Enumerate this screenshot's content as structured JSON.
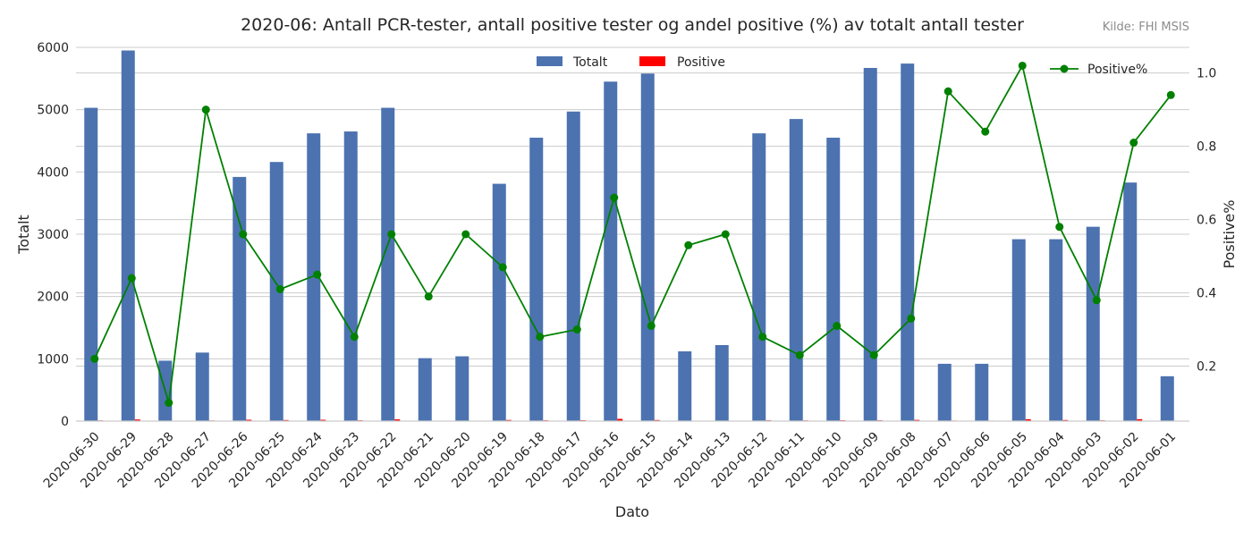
{
  "source_note": "Kilde: FHI MSIS",
  "chart_data": {
    "type": "bar+line",
    "title": "2020-06: Antall PCR-tester, antall positive tester og andel positive (%) av totalt antall tester",
    "xlabel": "Dato",
    "ylabel_left": "Totalt",
    "ylabel_right": "Positive%",
    "ylim_left": [
      0,
      6000
    ],
    "yticks_left": [
      "0",
      "1000",
      "2000",
      "3000",
      "4000",
      "5000",
      "6000"
    ],
    "ylim_right": [
      0.05,
      1.07
    ],
    "yticks_right": [
      "0.2",
      "0.4",
      "0.6",
      "0.8",
      "1.0"
    ],
    "grid": true,
    "legend_bars_placement": "top-center",
    "legend_line_placement": "top-right",
    "categories": [
      "2020-06-30",
      "2020-06-29",
      "2020-06-28",
      "2020-06-27",
      "2020-06-26",
      "2020-06-25",
      "2020-06-24",
      "2020-06-23",
      "2020-06-22",
      "2020-06-21",
      "2020-06-20",
      "2020-06-19",
      "2020-06-18",
      "2020-06-17",
      "2020-06-16",
      "2020-06-15",
      "2020-06-14",
      "2020-06-13",
      "2020-06-12",
      "2020-06-11",
      "2020-06-10",
      "2020-06-09",
      "2020-06-08",
      "2020-06-07",
      "2020-06-06",
      "2020-06-05",
      "2020-06-04",
      "2020-06-03",
      "2020-06-02",
      "2020-06-01"
    ],
    "series": [
      {
        "name": "Totalt",
        "kind": "bar",
        "axis": "left",
        "color": "#4c72b0",
        "values": [
          5030,
          5950,
          970,
          1100,
          3920,
          4160,
          4620,
          4650,
          5030,
          1010,
          1040,
          3810,
          4550,
          4970,
          5450,
          5580,
          1120,
          1220,
          4620,
          4850,
          4550,
          5670,
          5740,
          920,
          920,
          2920,
          2920,
          3120,
          3830,
          720
        ]
      },
      {
        "name": "Positive",
        "kind": "bar",
        "axis": "left",
        "color": "#ff0000",
        "values": [
          11,
          26,
          1,
          10,
          22,
          17,
          21,
          13,
          28,
          4,
          6,
          18,
          13,
          15,
          36,
          17,
          6,
          7,
          13,
          11,
          14,
          13,
          19,
          9,
          8,
          30,
          17,
          12,
          31,
          7
        ]
      },
      {
        "name": "Positive%",
        "kind": "line",
        "axis": "right",
        "color": "#008000",
        "values": [
          0.22,
          0.44,
          0.1,
          0.9,
          0.56,
          0.41,
          0.45,
          0.28,
          0.56,
          0.39,
          0.56,
          0.47,
          0.28,
          0.3,
          0.66,
          0.31,
          0.53,
          0.56,
          0.28,
          0.23,
          0.31,
          0.23,
          0.33,
          0.95,
          0.84,
          1.02,
          0.58,
          0.38,
          0.81,
          0.94
        ]
      }
    ]
  }
}
